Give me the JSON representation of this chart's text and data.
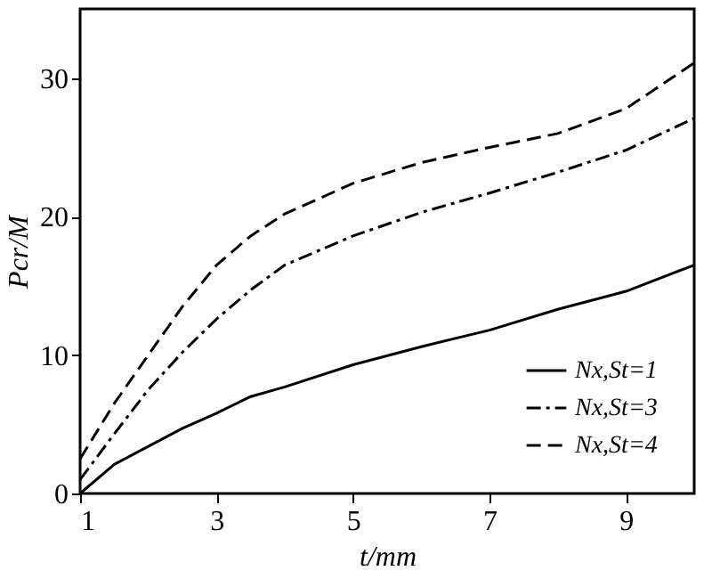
{
  "chart_data": {
    "type": "line",
    "xlabel": "t/mm",
    "ylabel": "Pcr/M",
    "xlim": [
      1,
      10
    ],
    "xticks": [
      1,
      3,
      5,
      7,
      9
    ],
    "ylim": [
      0,
      35
    ],
    "yticks": [
      0,
      10,
      20,
      30
    ],
    "grid": false,
    "legend": "bottom right",
    "marker": "none",
    "x": [
      1,
      1.5,
      2,
      2.5,
      3,
      3.5,
      4,
      5,
      6,
      7,
      8,
      9,
      10
    ],
    "series": [
      {
        "name": "Nx,St=1",
        "color": "#000000",
        "line_style": "solid",
        "values": [
          0,
          2.1,
          3.4,
          4.7,
          5.8,
          7,
          7.7,
          9.3,
          10.6,
          11.8,
          13.3,
          14.6,
          16.5
        ]
      },
      {
        "name": "Nx,St=3",
        "color": "#000000",
        "line_style": "dashdot",
        "values": [
          1,
          4.3,
          7.5,
          10.2,
          12.6,
          14.7,
          16.5,
          18.6,
          20.3,
          21.7,
          23.2,
          24.8,
          27.1
        ]
      },
      {
        "name": "Nx,St=4",
        "color": "#000000",
        "line_style": "dashed",
        "values": [
          2.5,
          6.5,
          10,
          13.5,
          16.5,
          18.6,
          20.2,
          22.4,
          23.9,
          25,
          26,
          27.8,
          31.1
        ]
      }
    ]
  }
}
